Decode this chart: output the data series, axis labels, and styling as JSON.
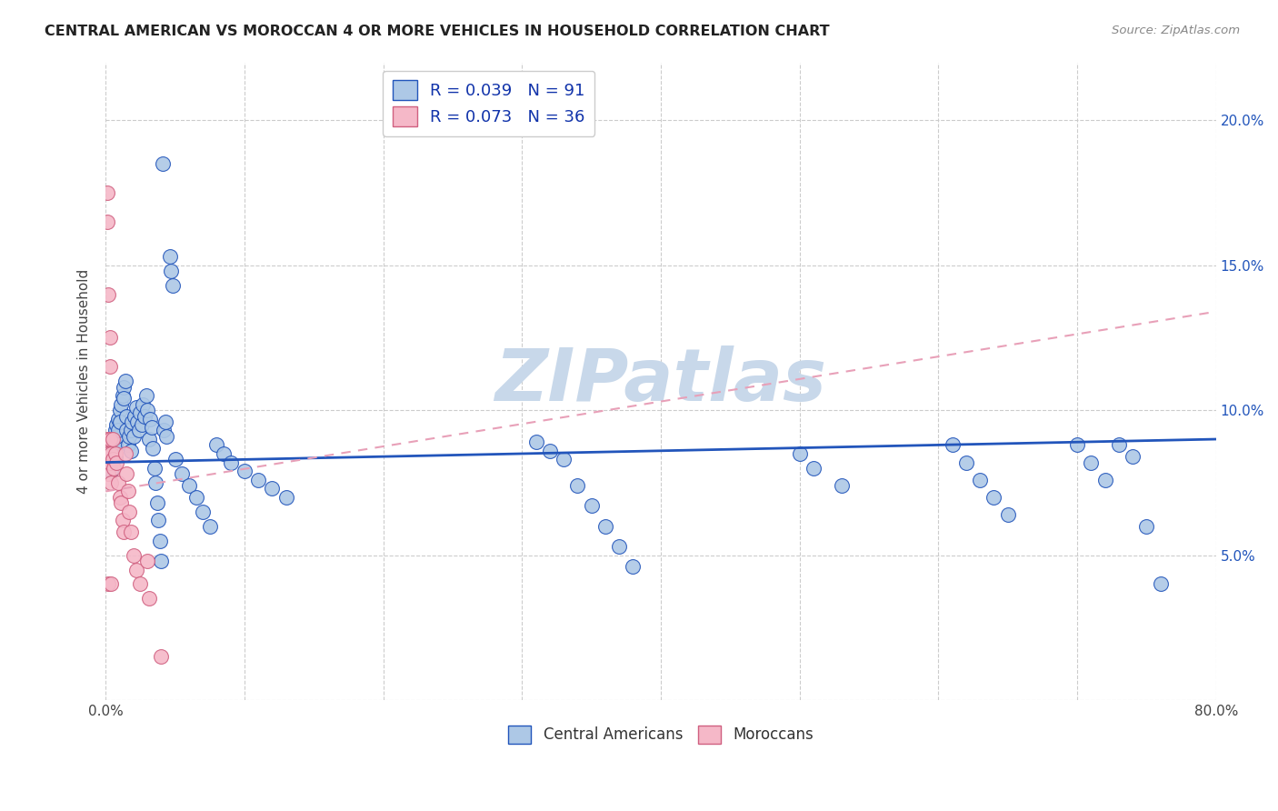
{
  "title": "CENTRAL AMERICAN VS MOROCCAN 4 OR MORE VEHICLES IN HOUSEHOLD CORRELATION CHART",
  "source": "Source: ZipAtlas.com",
  "ylabel": "4 or more Vehicles in Household",
  "legend_ca": "Central Americans",
  "legend_mo": "Moroccans",
  "r_ca": 0.039,
  "n_ca": 91,
  "r_mo": 0.073,
  "n_mo": 36,
  "xlim": [
    0.0,
    0.8
  ],
  "ylim": [
    0.0,
    0.22
  ],
  "color_ca": "#adc8e6",
  "color_mo": "#f5b8c8",
  "trendline_ca_color": "#2255bb",
  "trendline_mo_color": "#e8a0b8",
  "watermark": "ZIPatlas",
  "watermark_color": "#c8d8ea",
  "ca_x": [
    0.003,
    0.004,
    0.005,
    0.005,
    0.006,
    0.006,
    0.007,
    0.007,
    0.007,
    0.008,
    0.008,
    0.009,
    0.009,
    0.01,
    0.01,
    0.011,
    0.012,
    0.013,
    0.013,
    0.014,
    0.015,
    0.015,
    0.016,
    0.017,
    0.018,
    0.018,
    0.019,
    0.02,
    0.021,
    0.022,
    0.023,
    0.024,
    0.025,
    0.026,
    0.027,
    0.028,
    0.029,
    0.03,
    0.031,
    0.032,
    0.033,
    0.034,
    0.035,
    0.036,
    0.037,
    0.038,
    0.039,
    0.04,
    0.041,
    0.042,
    0.043,
    0.044,
    0.046,
    0.047,
    0.048,
    0.05,
    0.055,
    0.06,
    0.065,
    0.07,
    0.075,
    0.08,
    0.085,
    0.09,
    0.1,
    0.11,
    0.12,
    0.13,
    0.31,
    0.32,
    0.33,
    0.34,
    0.35,
    0.36,
    0.37,
    0.38,
    0.5,
    0.51,
    0.53,
    0.61,
    0.62,
    0.63,
    0.64,
    0.65,
    0.7,
    0.71,
    0.72,
    0.73,
    0.74,
    0.75,
    0.76
  ],
  "ca_y": [
    0.083,
    0.079,
    0.09,
    0.086,
    0.088,
    0.083,
    0.093,
    0.088,
    0.084,
    0.095,
    0.091,
    0.097,
    0.093,
    0.1,
    0.096,
    0.102,
    0.105,
    0.108,
    0.104,
    0.11,
    0.098,
    0.093,
    0.088,
    0.091,
    0.086,
    0.093,
    0.096,
    0.091,
    0.098,
    0.101,
    0.096,
    0.093,
    0.099,
    0.095,
    0.102,
    0.098,
    0.105,
    0.1,
    0.09,
    0.097,
    0.094,
    0.087,
    0.08,
    0.075,
    0.068,
    0.062,
    0.055,
    0.048,
    0.185,
    0.093,
    0.096,
    0.091,
    0.153,
    0.148,
    0.143,
    0.083,
    0.078,
    0.074,
    0.07,
    0.065,
    0.06,
    0.088,
    0.085,
    0.082,
    0.079,
    0.076,
    0.073,
    0.07,
    0.089,
    0.086,
    0.083,
    0.074,
    0.067,
    0.06,
    0.053,
    0.046,
    0.085,
    0.08,
    0.074,
    0.088,
    0.082,
    0.076,
    0.07,
    0.064,
    0.088,
    0.082,
    0.076,
    0.088,
    0.084,
    0.06,
    0.04
  ],
  "mo_x": [
    0.001,
    0.001,
    0.001,
    0.001,
    0.002,
    0.002,
    0.002,
    0.002,
    0.003,
    0.003,
    0.003,
    0.003,
    0.004,
    0.004,
    0.004,
    0.005,
    0.005,
    0.006,
    0.007,
    0.008,
    0.009,
    0.01,
    0.011,
    0.012,
    0.013,
    0.014,
    0.015,
    0.016,
    0.017,
    0.018,
    0.02,
    0.022,
    0.025,
    0.03,
    0.031,
    0.04
  ],
  "mo_y": [
    0.175,
    0.165,
    0.09,
    0.082,
    0.14,
    0.085,
    0.078,
    0.04,
    0.125,
    0.115,
    0.09,
    0.082,
    0.085,
    0.075,
    0.04,
    0.09,
    0.083,
    0.08,
    0.085,
    0.082,
    0.075,
    0.07,
    0.068,
    0.062,
    0.058,
    0.085,
    0.078,
    0.072,
    0.065,
    0.058,
    0.05,
    0.045,
    0.04,
    0.048,
    0.035,
    0.015
  ],
  "ca_trend_x0": 0.0,
  "ca_trend_y0": 0.082,
  "ca_trend_x1": 0.8,
  "ca_trend_y1": 0.09,
  "mo_trend_x0": 0.0,
  "mo_trend_y0": 0.072,
  "mo_trend_x1": 0.8,
  "mo_trend_y1": 0.134
}
